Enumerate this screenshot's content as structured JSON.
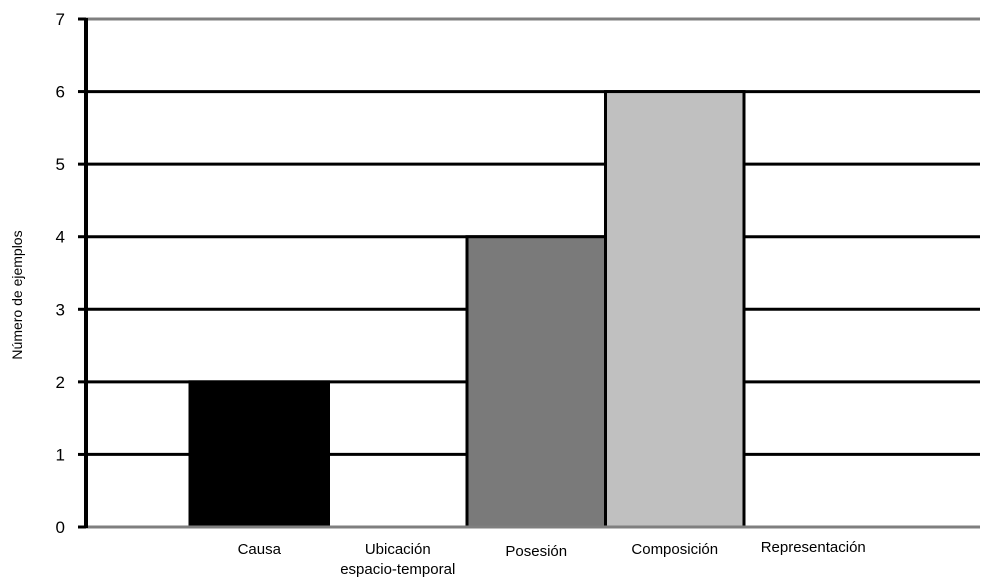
{
  "chart_data": {
    "type": "bar",
    "title": "",
    "xlabel": "",
    "ylabel": "Número de ejemplos",
    "ylim": [
      0,
      7
    ],
    "yticks": [
      0,
      1,
      2,
      3,
      4,
      5,
      6,
      7
    ],
    "grid": true,
    "legend": "none",
    "categories": [
      [
        "Causa"
      ],
      [
        "Ubicación",
        "espacio-temporal"
      ],
      [
        "Posesión"
      ],
      [
        "Composición"
      ],
      [
        "Representación"
      ]
    ],
    "values": [
      2,
      0,
      4,
      6,
      0
    ],
    "bar_colors": [
      "#000000",
      "#ffffff",
      "#7a7a7a",
      "#c0c0c0",
      "#ffffff"
    ],
    "axis_color": "#000000",
    "gridline_color": "#000000",
    "frame_color": "#7f7f7f"
  }
}
